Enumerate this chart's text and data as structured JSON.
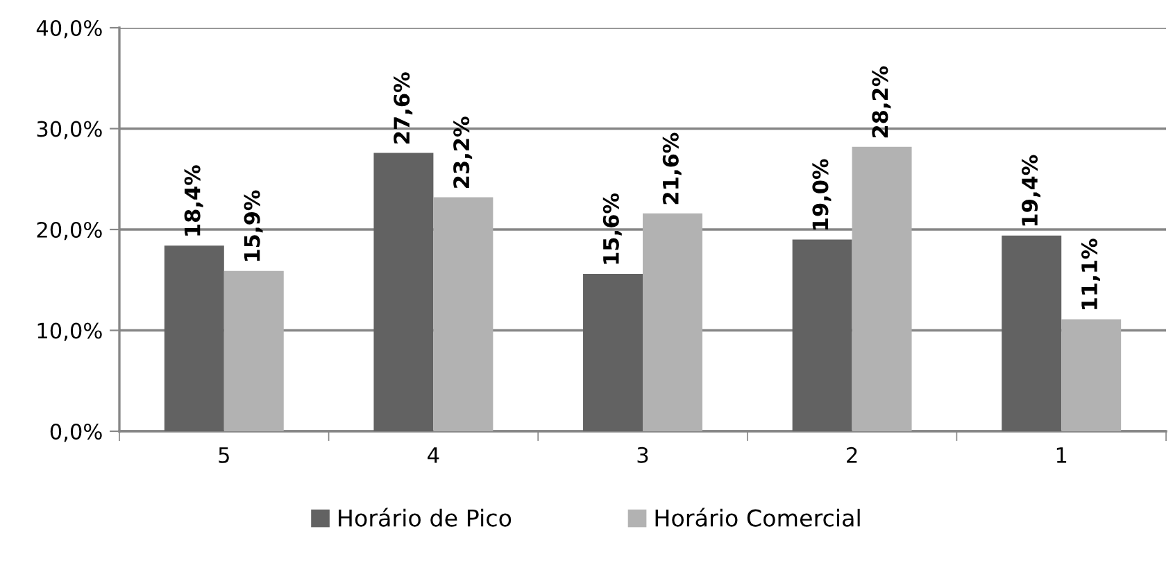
{
  "chart_data": {
    "type": "bar",
    "categories": [
      "5",
      "4",
      "3",
      "2",
      "1"
    ],
    "series": [
      {
        "name": "Horário de Pico",
        "color": "#626262",
        "values": [
          18.4,
          27.6,
          15.6,
          19.0,
          19.4
        ],
        "value_labels": [
          "18,4%",
          "27,6%",
          "15,6%",
          "19,0%",
          "19,4%"
        ]
      },
      {
        "name": "Horário Comercial",
        "color": "#b2b2b2",
        "values": [
          15.9,
          23.2,
          21.6,
          28.2,
          11.1
        ],
        "value_labels": [
          "15,9%",
          "23,2%",
          "21,6%",
          "28,2%",
          "11,1%"
        ]
      }
    ],
    "ylim": [
      0,
      40
    ],
    "yticks": [
      {
        "value": 0,
        "label": "0,0%"
      },
      {
        "value": 10,
        "label": "10,0%"
      },
      {
        "value": 20,
        "label": "20,0%"
      },
      {
        "value": 30,
        "label": "30,0%"
      },
      {
        "value": 40,
        "label": "40,0%"
      }
    ],
    "grid": "y",
    "legend": "bottom"
  }
}
